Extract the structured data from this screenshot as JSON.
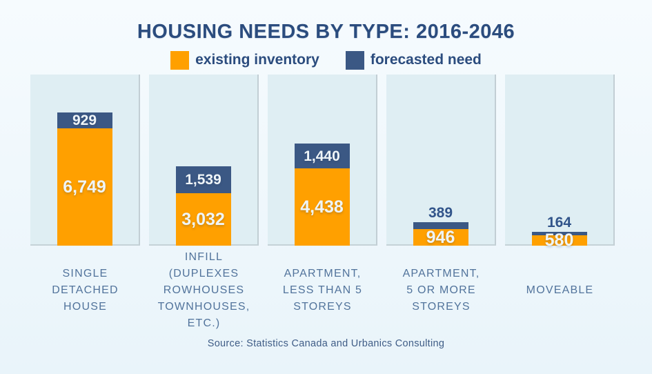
{
  "chart": {
    "title": "HOUSING NEEDS BY TYPE: 2016-2046",
    "legend": [
      {
        "label": "existing inventory",
        "color": "#FFA000"
      },
      {
        "label": "forecasted need",
        "color": "#3B5884"
      }
    ],
    "source": "Source: Statistics Canada and Urbanics Consulting"
  },
  "chart_data": {
    "type": "bar",
    "subtype": "stacked",
    "title": "HOUSING NEEDS BY TYPE: 2016-2046",
    "categories": [
      "SINGLE DETACHED HOUSE",
      "INFILL (DUPLEXES ROWHOUSES TOWNHOUSES, ETC.)",
      "APARTMENT, LESS THAN 5 STOREYS",
      "APARTMENT, 5 OR MORE STOREYS",
      "MOVEABLE"
    ],
    "category_lines": [
      [
        "SINGLE",
        "DETACHED",
        "HOUSE"
      ],
      [
        "INFILL",
        "(DUPLEXES",
        "ROWHOUSES",
        "TOWNHOUSES,",
        "ETC.)"
      ],
      [
        "APARTMENT,",
        "LESS THAN 5",
        "STOREYS"
      ],
      [
        "APARTMENT,",
        "5 OR MORE",
        "STOREYS"
      ],
      [
        "MOVEABLE"
      ]
    ],
    "series": [
      {
        "name": "existing inventory",
        "color": "#FFA000",
        "values": [
          6749,
          3032,
          4438,
          946,
          580
        ]
      },
      {
        "name": "forecasted need",
        "color": "#3B5884",
        "values": [
          929,
          1539,
          1440,
          389,
          164
        ]
      }
    ],
    "value_labels_shown": [
      "6,749",
      "3,032",
      "4,438",
      "946",
      "580",
      "929",
      "1,539",
      "1,440",
      "389",
      "164"
    ],
    "legend_position": "top",
    "grid": false,
    "value_axis_visible": false,
    "theme": {
      "background": "#EEF7FC",
      "panel": "#DFEEF3",
      "panel_edge": "#C5D2D7",
      "title_text": "#2B4C7E",
      "category_text": "#51739B",
      "value_text_light": "#EFF5F8",
      "value_text_dark": "#31548A"
    }
  }
}
